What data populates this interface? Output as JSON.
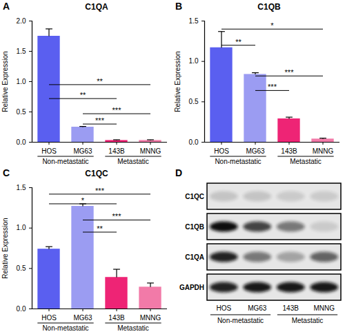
{
  "chart_data": [
    {
      "type": "bar",
      "panel": "A",
      "title": "C1QA",
      "y_label": "Relative Expression",
      "categories": [
        "HOS",
        "MG63",
        "143B",
        "MNNG"
      ],
      "values": [
        1.75,
        0.25,
        0.03,
        0.03
      ],
      "errors": [
        0.12,
        0.01,
        0.01,
        0.01
      ],
      "colors": [
        "#5a5ff0",
        "#9b9cf2",
        "#ee2475",
        "#f27aa8"
      ],
      "groups": [
        {
          "label": "Non-metastatic",
          "categories": [
            "HOS",
            "MG63"
          ]
        },
        {
          "label": "Metastatic",
          "categories": [
            "143B",
            "MNNG"
          ]
        }
      ],
      "ylim": [
        0,
        2
      ],
      "yticks": [
        {
          "value": 0,
          "label": "0.0"
        },
        0.5,
        {
          "value": 1,
          "label": "1.0"
        },
        1.5,
        {
          "value": 2,
          "label": "2.0"
        }
      ],
      "significance": [
        {
          "from": "HOS",
          "to": "MNNG",
          "label": "**",
          "y": 0.95
        },
        {
          "from": "HOS",
          "to": "143B",
          "label": "**",
          "y": 0.72
        },
        {
          "from": "MG63",
          "to": "MNNG",
          "label": "***",
          "y": 0.47
        },
        {
          "from": "MG63",
          "to": "143B",
          "label": "***",
          "y": 0.3
        }
      ]
    },
    {
      "type": "bar",
      "panel": "B",
      "title": "C1QB",
      "y_label": "Relative Expression",
      "categories": [
        "HOS",
        "MG63",
        "143B",
        "MNNG"
      ],
      "values": [
        1.17,
        0.84,
        0.29,
        0.04
      ],
      "errors": [
        0.2,
        0.02,
        0.02,
        0.01
      ],
      "colors": [
        "#5a5ff0",
        "#9b9cf2",
        "#ee2475",
        "#f27aa8"
      ],
      "groups": [
        {
          "label": "Non-metastatic",
          "categories": [
            "HOS",
            "MG63"
          ]
        },
        {
          "label": "Metastatic",
          "categories": [
            "143B",
            "MNNG"
          ]
        }
      ],
      "ylim": [
        0,
        1.5
      ],
      "yticks": [
        {
          "value": 0,
          "label": "0.0"
        },
        0.5,
        {
          "value": 1,
          "label": "1.0"
        },
        1.5
      ],
      "significance": [
        {
          "from": "HOS",
          "to": "MNNG",
          "label": "*",
          "y": 1.4
        },
        {
          "from": "HOS",
          "to": "MG63",
          "label": "**",
          "y": 1.2
        },
        {
          "from": "MG63",
          "to": "MNNG",
          "label": "***",
          "y": 0.82
        },
        {
          "from": "MG63",
          "to": "143B",
          "label": "***",
          "y": 0.64
        }
      ]
    },
    {
      "type": "bar",
      "panel": "C",
      "title": "C1QC",
      "y_label": "Relative Expression",
      "categories": [
        "HOS",
        "MG63",
        "143B",
        "MNNG"
      ],
      "values": [
        0.74,
        1.27,
        0.39,
        0.27
      ],
      "errors": [
        0.03,
        0.03,
        0.1,
        0.05
      ],
      "colors": [
        "#5a5ff0",
        "#9b9cf2",
        "#ee2475",
        "#f27aa8"
      ],
      "groups": [
        {
          "label": "Non-metastatic",
          "categories": [
            "HOS",
            "MG63"
          ]
        },
        {
          "label": "Metastatic",
          "categories": [
            "143B",
            "MNNG"
          ]
        }
      ],
      "ylim": [
        0,
        1.5
      ],
      "yticks": [
        {
          "value": 0,
          "label": "0.0"
        },
        0.5,
        {
          "value": 1,
          "label": "1.0"
        },
        1.5
      ],
      "significance": [
        {
          "from": "HOS",
          "to": "MNNG",
          "label": "***",
          "y": 1.42
        },
        {
          "from": "HOS",
          "to": "143B",
          "label": "*",
          "y": 1.3
        },
        {
          "from": "MG63",
          "to": "MNNG",
          "label": "***",
          "y": 1.1
        },
        {
          "from": "MG63",
          "to": "143B",
          "label": "**",
          "y": 0.95
        }
      ]
    }
  ],
  "blot": {
    "panel": "D",
    "lanes": [
      "HOS",
      "MG63",
      "143B",
      "MNNG"
    ],
    "rows": [
      {
        "label": "C1QC",
        "intensity": [
          0.15,
          0.15,
          0.12,
          0.12
        ]
      },
      {
        "label": "C1QB",
        "intensity": [
          1.0,
          0.75,
          0.5,
          0.12
        ]
      },
      {
        "label": "C1QA",
        "intensity": [
          0.9,
          0.5,
          0.3,
          0.6
        ]
      },
      {
        "label": "GAPDH",
        "intensity": [
          0.9,
          0.95,
          0.95,
          0.95
        ]
      }
    ],
    "groups": [
      {
        "label": "Non-metastatic",
        "lanes": [
          "HOS",
          "MG63"
        ]
      },
      {
        "label": "Metastatic",
        "lanes": [
          "143B",
          "MNNG"
        ]
      }
    ]
  }
}
